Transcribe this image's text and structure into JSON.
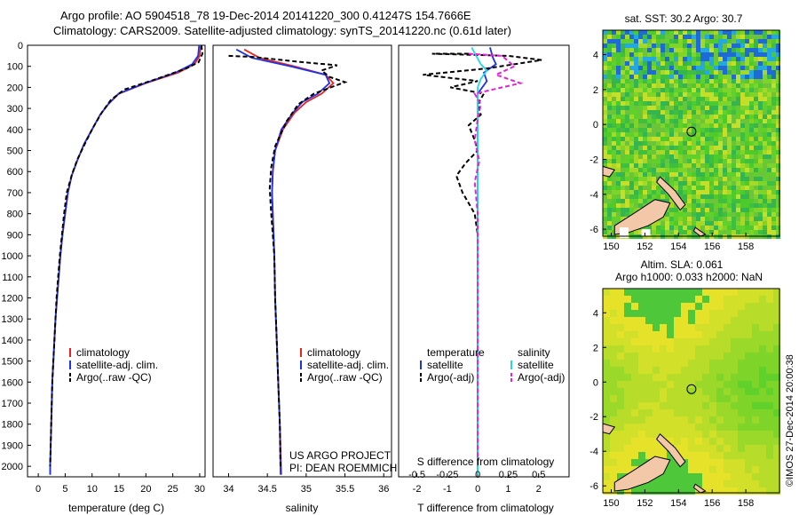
{
  "header": {
    "line1": "Argo profile: AO 5904518_78 19-Dec-2014 20141220_300 0.41247S 154.7666E",
    "line2": "Climatology: CARS2009. Satellite-adjusted climatology: synTS_20141220.nc (0.61d later)"
  },
  "colors": {
    "climatology": "#e8231f",
    "satellite": "#1f32e6",
    "argo": "#000000",
    "sat_sal": "#22d8e6",
    "argo_sal": "#e61fdc",
    "land": "#f2c8a8"
  },
  "chart_data": [
    {
      "type": "line",
      "id": "temperature",
      "xlabel": "temperature (deg C)",
      "xlim": [
        -2,
        31
      ],
      "xticks": [
        0,
        5,
        10,
        15,
        20,
        25,
        30
      ],
      "ylim": [
        0,
        2050
      ],
      "yticks": [
        0,
        100,
        200,
        300,
        400,
        500,
        600,
        700,
        800,
        900,
        1000,
        1100,
        1200,
        1300,
        1400,
        1500,
        1600,
        1700,
        1800,
        1900,
        2000
      ],
      "legend": [
        "climatology",
        "satellite-adj. clim.",
        "Argo(..raw -QC)"
      ],
      "series": [
        {
          "name": "climatology",
          "color": "#e8231f",
          "points": [
            [
              30.2,
              0
            ],
            [
              30.0,
              50
            ],
            [
              29.0,
              90
            ],
            [
              26,
              130
            ],
            [
              20,
              180
            ],
            [
              15,
              230
            ],
            [
              13,
              280
            ],
            [
              11.5,
              330
            ],
            [
              10,
              400
            ],
            [
              8.5,
              470
            ],
            [
              7.2,
              550
            ],
            [
              6.2,
              620
            ],
            [
              5.5,
              700
            ],
            [
              5.0,
              800
            ],
            [
              4.5,
              900
            ],
            [
              4.1,
              1000
            ],
            [
              3.8,
              1100
            ],
            [
              3.5,
              1200
            ],
            [
              3.2,
              1300
            ],
            [
              3.0,
              1400
            ],
            [
              2.8,
              1500
            ],
            [
              2.6,
              1600
            ],
            [
              2.5,
              1700
            ],
            [
              2.4,
              1800
            ],
            [
              2.3,
              1900
            ],
            [
              2.2,
              2000
            ],
            [
              2.2,
              2040
            ]
          ]
        },
        {
          "name": "satellite-adj. clim.",
          "color": "#1f32e6",
          "points": [
            [
              29.9,
              0
            ],
            [
              29.7,
              50
            ],
            [
              28.6,
              90
            ],
            [
              25.5,
              130
            ],
            [
              19.8,
              180
            ],
            [
              14.9,
              230
            ],
            [
              13,
              280
            ],
            [
              11.5,
              330
            ],
            [
              10,
              400
            ],
            [
              8.5,
              470
            ],
            [
              7.2,
              550
            ],
            [
              6.2,
              620
            ],
            [
              5.5,
              700
            ],
            [
              5.0,
              800
            ],
            [
              4.5,
              900
            ],
            [
              4.1,
              1000
            ],
            [
              3.8,
              1100
            ],
            [
              3.5,
              1200
            ],
            [
              3.2,
              1300
            ],
            [
              3.0,
              1400
            ],
            [
              2.8,
              1500
            ],
            [
              2.6,
              1600
            ],
            [
              2.5,
              1700
            ],
            [
              2.4,
              1800
            ],
            [
              2.3,
              1900
            ],
            [
              2.2,
              2000
            ],
            [
              2.2,
              2040
            ]
          ]
        },
        {
          "name": "Argo(..raw -QC)",
          "color": "#000000",
          "dashed": true,
          "points": [
            [
              30.3,
              0
            ],
            [
              30.5,
              40
            ],
            [
              29.8,
              80
            ],
            [
              27.5,
              110
            ],
            [
              22,
              160
            ],
            [
              16,
              210
            ],
            [
              13.5,
              260
            ],
            [
              11.8,
              320
            ],
            [
              10.2,
              390
            ],
            [
              8.8,
              460
            ],
            [
              7.3,
              540
            ],
            [
              6.3,
              610
            ],
            [
              5.3,
              700
            ],
            [
              4.8,
              800
            ],
            [
              4.4,
              900
            ],
            [
              4.0,
              1000
            ],
            [
              3.7,
              1100
            ],
            [
              3.4,
              1200
            ],
            [
              3.2,
              1300
            ],
            [
              3.0,
              1400
            ],
            [
              2.8,
              1500
            ],
            [
              2.6,
              1600
            ],
            [
              2.5,
              1700
            ],
            [
              2.4,
              1800
            ],
            [
              2.3,
              1900
            ],
            [
              2.2,
              2000
            ]
          ]
        }
      ]
    },
    {
      "type": "line",
      "id": "salinity",
      "xlabel": "salinity",
      "xlim": [
        33.8,
        36.1
      ],
      "xticks": [
        34,
        34.5,
        35,
        35.5,
        36
      ],
      "ylim": [
        0,
        2050
      ],
      "legend": [
        "climatology",
        "satellite-adj. clim.",
        "Argo(..raw -QC)"
      ],
      "annotation": [
        "US ARGO PROJECT",
        "PI: DEAN ROEMMICH"
      ],
      "series": [
        {
          "name": "climatology",
          "color": "#e8231f",
          "points": [
            [
              34.2,
              20
            ],
            [
              34.4,
              60
            ],
            [
              34.85,
              100
            ],
            [
              35.25,
              140
            ],
            [
              35.35,
              180
            ],
            [
              35.2,
              230
            ],
            [
              35.0,
              270
            ],
            [
              34.85,
              320
            ],
            [
              34.7,
              400
            ],
            [
              34.6,
              500
            ],
            [
              34.57,
              600
            ],
            [
              34.56,
              700
            ],
            [
              34.57,
              800
            ],
            [
              34.58,
              900
            ],
            [
              34.59,
              1000
            ],
            [
              34.6,
              1200
            ],
            [
              34.62,
              1400
            ],
            [
              34.64,
              1600
            ],
            [
              34.66,
              1800
            ],
            [
              34.68,
              2040
            ]
          ]
        },
        {
          "name": "satellite-adj. clim.",
          "color": "#1f32e6",
          "points": [
            [
              34.1,
              20
            ],
            [
              34.3,
              60
            ],
            [
              34.8,
              100
            ],
            [
              35.25,
              140
            ],
            [
              35.3,
              180
            ],
            [
              35.15,
              230
            ],
            [
              34.95,
              270
            ],
            [
              34.83,
              320
            ],
            [
              34.68,
              400
            ],
            [
              34.6,
              500
            ],
            [
              34.57,
              600
            ],
            [
              34.56,
              700
            ],
            [
              34.57,
              800
            ],
            [
              34.58,
              900
            ],
            [
              34.59,
              1000
            ],
            [
              34.6,
              1200
            ],
            [
              34.62,
              1400
            ],
            [
              34.64,
              1600
            ],
            [
              34.66,
              1800
            ],
            [
              34.67,
              2040
            ]
          ]
        },
        {
          "name": "Argo(..raw -QC)",
          "color": "#000000",
          "dashed": true,
          "points": [
            [
              34.0,
              50
            ],
            [
              34.3,
              55
            ],
            [
              34.95,
              80
            ],
            [
              35.4,
              95
            ],
            [
              35.2,
              120
            ],
            [
              35.3,
              150
            ],
            [
              35.5,
              175
            ],
            [
              35.1,
              230
            ],
            [
              34.9,
              280
            ],
            [
              34.75,
              360
            ],
            [
              34.6,
              480
            ],
            [
              34.55,
              580
            ],
            [
              34.53,
              680
            ],
            [
              34.55,
              800
            ],
            [
              34.57,
              900
            ],
            [
              34.59,
              1000
            ],
            [
              34.6,
              1200
            ],
            [
              34.62,
              1400
            ],
            [
              34.64,
              1600
            ],
            [
              34.66,
              1800
            ],
            [
              34.67,
              2000
            ]
          ]
        }
      ]
    },
    {
      "type": "line",
      "id": "difference",
      "xlabel": "T difference from climatology",
      "xlabel_top": "S difference from climatology",
      "xlim": [
        -2.6,
        3.0
      ],
      "xticks": [
        -2,
        -1,
        0,
        1,
        2
      ],
      "xticks_s": [
        -0.5,
        -0.25,
        0,
        0.25,
        0.5
      ],
      "ylim": [
        0,
        2050
      ],
      "legend": {
        "temperature_title": "temperature",
        "salinity_title": "salinity",
        "items": [
          "satellite",
          "Argo(-adj)",
          "satellite",
          "Argo(-adj)"
        ]
      },
      "series": [
        {
          "name": "satellite",
          "color": "#1f32e6",
          "points": [
            [
              0.4,
              10
            ],
            [
              0.5,
              60
            ],
            [
              0.6,
              90
            ],
            [
              0.2,
              130
            ],
            [
              0.3,
              170
            ],
            [
              0,
              230
            ],
            [
              0,
              300
            ],
            [
              0,
              600
            ],
            [
              0,
              2040
            ]
          ]
        },
        {
          "name": "Argo(-adj)",
          "color": "#000000",
          "dashed": true,
          "points": [
            [
              -0.3,
              40
            ],
            [
              -1.5,
              40
            ],
            [
              1.0,
              50
            ],
            [
              2.1,
              70
            ],
            [
              0.3,
              110
            ],
            [
              -1.8,
              140
            ],
            [
              0.0,
              170
            ],
            [
              -0.9,
              200
            ],
            [
              0.2,
              230
            ],
            [
              0.0,
              280
            ],
            [
              0.1,
              330
            ],
            [
              -0.3,
              380
            ],
            [
              -0.1,
              450
            ],
            [
              0.0,
              500
            ],
            [
              -0.4,
              560
            ],
            [
              -0.7,
              620
            ],
            [
              -0.5,
              700
            ],
            [
              -0.3,
              750
            ],
            [
              -0.1,
              800
            ],
            [
              0.0,
              900
            ],
            [
              0.0,
              2000
            ]
          ]
        },
        {
          "name": "satellite",
          "color": "#22d8e6",
          "points": [
            [
              -0.2,
              10
            ],
            [
              -0.05,
              50
            ],
            [
              0.1,
              90
            ],
            [
              0.3,
              120
            ],
            [
              0.1,
              160
            ],
            [
              0,
              200
            ],
            [
              0,
              300
            ],
            [
              0,
              600
            ],
            [
              0,
              2040
            ]
          ]
        },
        {
          "name": "Argo(-adj)",
          "color": "#e61fdc",
          "dashed": true,
          "points": [
            [
              -0.3,
              40
            ],
            [
              0.8,
              50
            ],
            [
              1.2,
              100
            ],
            [
              0.6,
              140
            ],
            [
              1.4,
              180
            ],
            [
              -0.1,
              230
            ],
            [
              0.1,
              280
            ],
            [
              0,
              350
            ],
            [
              -0.1,
              450
            ],
            [
              0.05,
              550
            ],
            [
              -0.1,
              650
            ],
            [
              0,
              800
            ],
            [
              0,
              2000
            ]
          ]
        }
      ]
    },
    {
      "type": "heatmap",
      "id": "sst_map",
      "title": "sat. SST: 30.2  Argo: 30.7",
      "xlim": [
        149.5,
        160
      ],
      "ylim": [
        -6.4,
        5.4
      ],
      "xticks": [
        150,
        152,
        154,
        156,
        158
      ],
      "yticks": [
        -6,
        -4,
        -2,
        0,
        2,
        4
      ],
      "marker": [
        154.77,
        -0.41
      ]
    },
    {
      "type": "heatmap",
      "id": "sla_map",
      "title_line1": "Altim. SLA: 0.061",
      "title_line2": "Argo h1000: 0.033 h2000: NaN",
      "xlim": [
        149.5,
        160
      ],
      "ylim": [
        -6.4,
        5.4
      ],
      "xticks": [
        150,
        152,
        154,
        156,
        158
      ],
      "yticks": [
        -6,
        -4,
        -2,
        0,
        2,
        4
      ],
      "marker": [
        154.77,
        -0.41
      ]
    }
  ],
  "credit": "©IMOS 27-Dec-2014 20:00:38"
}
